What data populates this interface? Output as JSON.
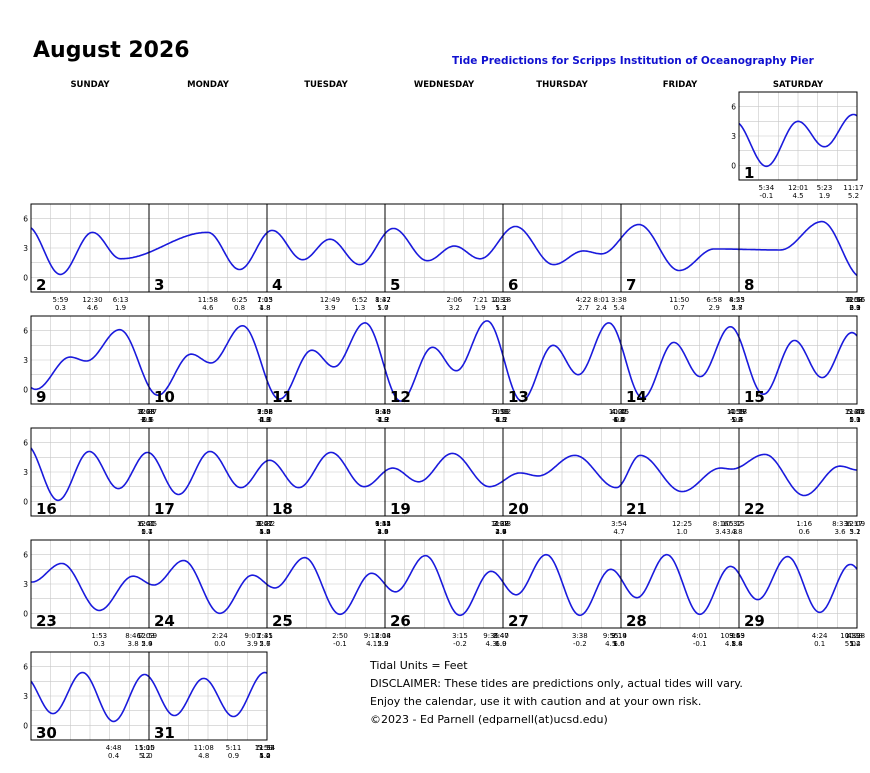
{
  "title": "August 2026",
  "subtitle": "Tide Predictions for Scripps Institution of Oceanography Pier",
  "weekdays": [
    "SUNDAY",
    "MONDAY",
    "TUESDAY",
    "WEDNESDAY",
    "THURSDAY",
    "FRIDAY",
    "SATURDAY"
  ],
  "y_ticks": [
    "6",
    "3",
    "0"
  ],
  "notes": {
    "units": "Tidal Units = Feet",
    "disclaimer": "DISCLAIMER: These tides are predictions only, actual tides will vary.",
    "caution": "Enjoy the calendar, use it with caution and at your own risk.",
    "copyright": "©2023 - Ed Parnell (edparnell(at)ucsd.edu)"
  },
  "colors": {
    "curve": "#1a1adc",
    "grid": "#c8c8c8",
    "border": "#000000",
    "subtitle": "#1010d0"
  },
  "chart_data": {
    "type": "line",
    "units": "Feet",
    "ylim": [
      -1.5,
      7.5
    ],
    "weeks": [
      [
        null,
        null,
        null,
        null,
        null,
        null,
        1
      ],
      [
        2,
        3,
        4,
        5,
        6,
        7,
        8
      ],
      [
        9,
        10,
        11,
        12,
        13,
        14,
        15
      ],
      [
        16,
        17,
        18,
        19,
        20,
        21,
        22
      ],
      [
        23,
        24,
        25,
        26,
        27,
        28,
        29
      ],
      [
        30,
        31,
        null,
        null,
        null,
        null,
        null
      ]
    ],
    "days": {
      "1": {
        "extremes": [
          [
            "5:34",
            -0.1
          ],
          [
            "12:01",
            4.5
          ],
          [
            "5:23",
            1.9
          ],
          [
            "11:17",
            5.2
          ]
        ]
      },
      "2": {
        "extremes": [
          [
            "5:59",
            0.3
          ],
          [
            "12:30",
            4.6
          ],
          [
            "6:13",
            1.9
          ]
        ]
      },
      "3": {
        "extremes": [
          [
            "11:58",
            4.6
          ],
          [
            "6:25",
            0.8
          ],
          [
            "1:03",
            4.8
          ],
          [
            "7:15",
            1.8
          ]
        ]
      },
      "4": {
        "extremes": [
          [
            "12:49",
            3.9
          ],
          [
            "6:52",
            1.3
          ],
          [
            "1:42",
            5.0
          ],
          [
            "8:37",
            1.7
          ]
        ]
      },
      "5": {
        "extremes": [
          [
            "2:06",
            3.2
          ],
          [
            "7:21",
            1.9
          ],
          [
            "2:33",
            5.2
          ],
          [
            "10:18",
            1.3
          ]
        ]
      },
      "6": {
        "extremes": [
          [
            "4:22",
            2.7
          ],
          [
            "8:01",
            2.4
          ],
          [
            "3:38",
            5.4
          ]
        ]
      },
      "7": {
        "extremes": [
          [
            "11:50",
            0.7
          ],
          [
            "6:58",
            2.9
          ],
          [
            "8:25",
            2.8
          ],
          [
            "4:53",
            5.7
          ]
        ]
      },
      "8": {
        "extremes": [
          [
            "12:56",
            -0.0
          ],
          [
            "7:58",
            3.3
          ],
          [
            "11:16",
            2.9
          ],
          [
            "6:02",
            6.1
          ]
        ]
      },
      "9": {
        "extremes": [
          [
            "1:48",
            -0.6
          ],
          [
            "8:35",
            3.6
          ],
          [
            "12:37",
            2.7
          ],
          [
            "7:03",
            6.5
          ]
        ]
      },
      "10": {
        "extremes": [
          [
            "2:32",
            -1.0
          ],
          [
            "9:08",
            4.0
          ],
          [
            "1:38",
            2.3
          ],
          [
            "7:56",
            6.8
          ]
        ]
      },
      "11": {
        "extremes": [
          [
            "3:13",
            -1.2
          ],
          [
            "9:40",
            4.3
          ],
          [
            "2:30",
            1.9
          ],
          [
            "8:45",
            7.0
          ]
        ]
      },
      "12": {
        "extremes": [
          [
            "3:50",
            -1.2
          ],
          [
            "10:12",
            4.5
          ],
          [
            "3:19",
            1.5
          ],
          [
            "9:31",
            6.8
          ]
        ]
      },
      "13": {
        "extremes": [
          [
            "4:25",
            -0.9
          ],
          [
            "10:45",
            4.8
          ],
          [
            "4:07",
            1.3
          ],
          [
            "10:15",
            6.4
          ]
        ]
      },
      "14": {
        "extremes": [
          [
            "4:59",
            -0.5
          ],
          [
            "11:17",
            5.0
          ],
          [
            "4:55",
            1.2
          ],
          [
            "10:58",
            5.8
          ]
        ]
      },
      "15": {
        "extremes": [
          [
            "5:30",
            0.1
          ],
          [
            "11:51",
            5.1
          ],
          [
            "5:46",
            1.3
          ],
          [
            "11:43",
            5.0
          ]
        ]
      },
      "16": {
        "extremes": [
          [
            "6:00",
            0.7
          ],
          [
            "12:25",
            5.1
          ],
          [
            "6:41",
            1.4
          ]
        ]
      },
      "17": {
        "extremes": [
          [
            "12:32",
            4.2
          ],
          [
            "6:27",
            1.4
          ],
          [
            "1:01",
            5.0
          ],
          [
            "7:47",
            1.5
          ]
        ]
      },
      "18": {
        "extremes": [
          [
            "1:34",
            3.4
          ],
          [
            "6:51",
            2.0
          ],
          [
            "1:42",
            4.9
          ],
          [
            "9:15",
            1.5
          ]
        ]
      },
      "19": {
        "extremes": [
          [
            "3:28",
            2.9
          ],
          [
            "7:08",
            2.6
          ],
          [
            "2:37",
            4.7
          ],
          [
            "11:03",
            1.4
          ]
        ]
      },
      "20": {
        "extremes": [
          [
            "3:54",
            4.7
          ]
        ]
      },
      "21": {
        "extremes": [
          [
            "12:25",
            1.0
          ],
          [
            "8:16",
            3.4
          ],
          [
            "10:32",
            3.3
          ],
          [
            "5:15",
            4.8
          ]
        ]
      },
      "22": {
        "extremes": [
          [
            "1:16",
            0.6
          ],
          [
            "8:33",
            3.6
          ],
          [
            "12:09",
            3.2
          ],
          [
            "6:17",
            5.1
          ]
        ]
      },
      "23": {
        "extremes": [
          [
            "1:53",
            0.3
          ],
          [
            "8:46",
            3.8
          ],
          [
            "12:59",
            2.9
          ],
          [
            "7:03",
            5.4
          ]
        ]
      },
      "24": {
        "extremes": [
          [
            "2:24",
            0.0
          ],
          [
            "9:01",
            3.9
          ],
          [
            "1:35",
            2.6
          ],
          [
            "7:41",
            5.7
          ]
        ]
      },
      "25": {
        "extremes": [
          [
            "2:50",
            -0.1
          ],
          [
            "9:17",
            4.1
          ],
          [
            "2:08",
            2.2
          ],
          [
            "8:14",
            5.9
          ]
        ]
      },
      "26": {
        "extremes": [
          [
            "3:15",
            -0.2
          ],
          [
            "9:35",
            4.3
          ],
          [
            "2:40",
            1.9
          ],
          [
            "8:47",
            6.0
          ]
        ]
      },
      "27": {
        "extremes": [
          [
            "3:38",
            -0.2
          ],
          [
            "9:55",
            4.5
          ],
          [
            "3:14",
            1.6
          ],
          [
            "9:19",
            6.0
          ]
        ]
      },
      "28": {
        "extremes": [
          [
            "4:01",
            -0.1
          ],
          [
            "10:16",
            4.8
          ],
          [
            "3:49",
            1.4
          ],
          [
            "9:53",
            5.8
          ]
        ]
      },
      "29": {
        "extremes": [
          [
            "4:24",
            0.1
          ],
          [
            "10:39",
            5.0
          ],
          [
            "4:28",
            1.2
          ],
          [
            "10:28",
            5.4
          ]
        ]
      },
      "30": {
        "extremes": [
          [
            "4:48",
            0.4
          ],
          [
            "11:05",
            5.2
          ],
          [
            "5:10",
            1.0
          ]
        ]
      },
      "31": {
        "extremes": [
          [
            "11:08",
            4.8
          ],
          [
            "5:11",
            0.9
          ],
          [
            "11:33",
            5.4
          ],
          [
            "5:59",
            1.0
          ],
          [
            "11:54",
            4.2
          ]
        ]
      }
    }
  }
}
